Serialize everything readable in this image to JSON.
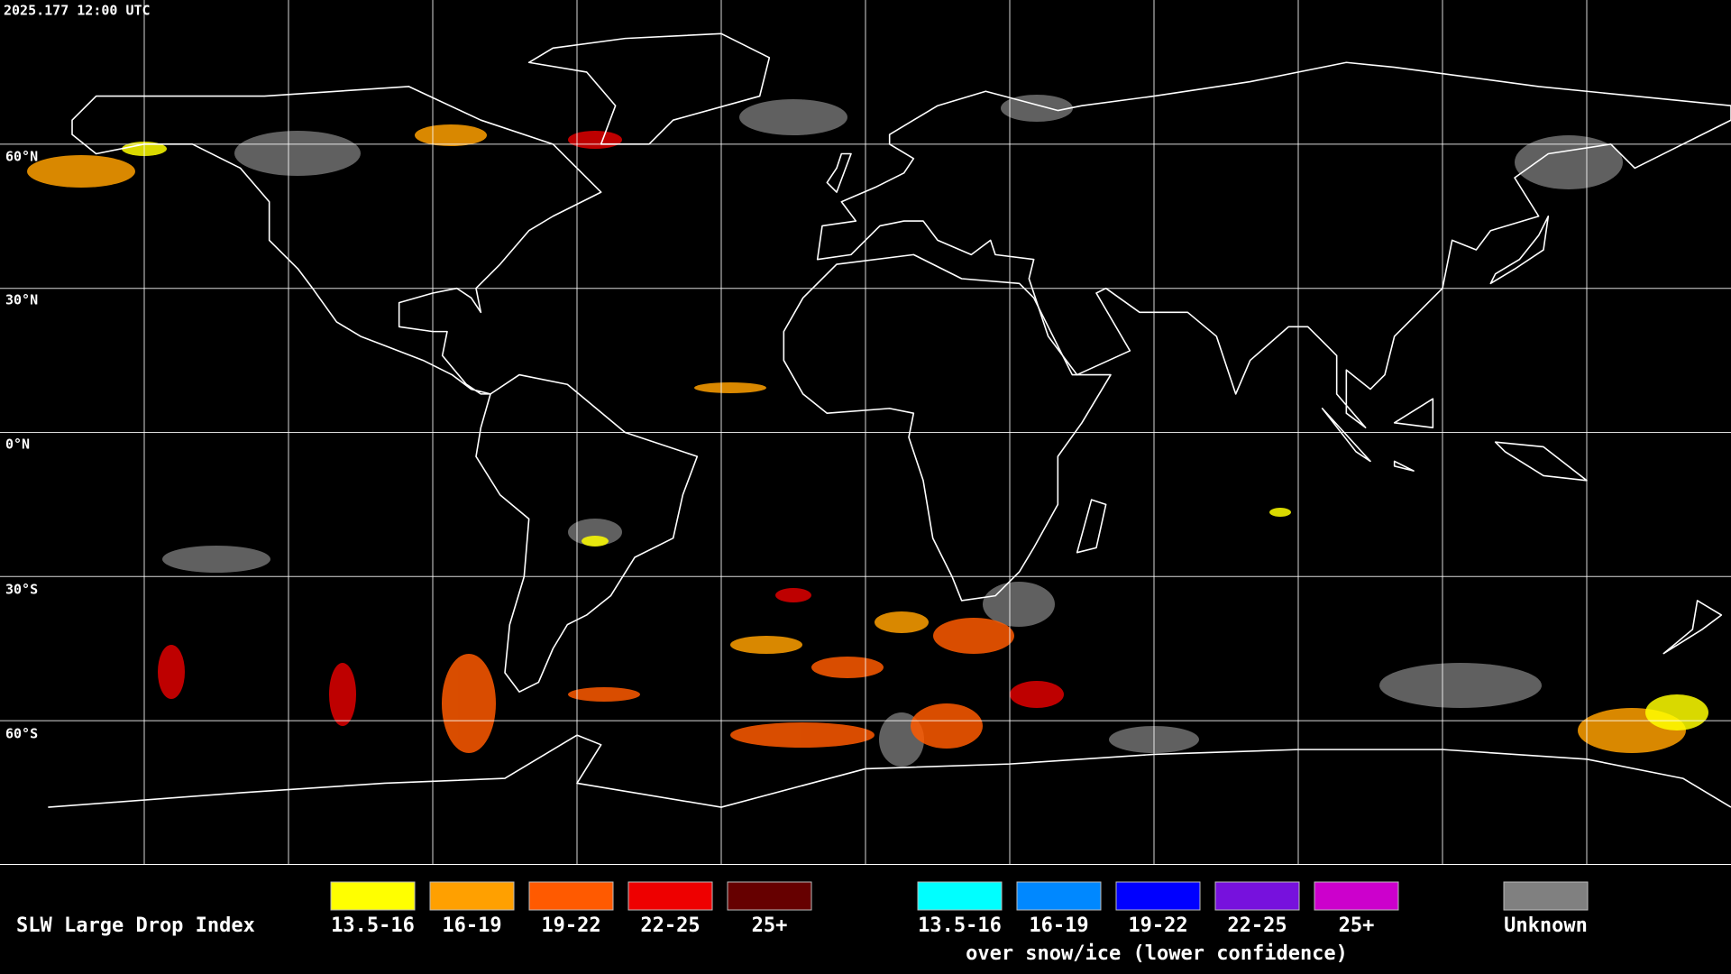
{
  "header": {
    "timestamp": "2025.177 12:00 UTC"
  },
  "map": {
    "latitude_labels": [
      "60°N",
      "30°N",
      "0°N",
      "30°S",
      "60°S"
    ]
  },
  "legend": {
    "title": "SLW Large Drop Index",
    "groups": [
      {
        "items": [
          {
            "label": "13.5-16",
            "color": "#ffff00"
          },
          {
            "label": "16-19",
            "color": "#ffa000"
          },
          {
            "label": "19-22",
            "color": "#ff5a00"
          },
          {
            "label": "22-25",
            "color": "#ee0000"
          },
          {
            "label": "25+",
            "color": "#660000"
          }
        ]
      },
      {
        "items": [
          {
            "label": "13.5-16",
            "color": "#00ffff"
          },
          {
            "label": "16-19",
            "color": "#0088ff"
          },
          {
            "label": "19-22",
            "color": "#0000ff"
          },
          {
            "label": "22-25",
            "color": "#7711dd"
          },
          {
            "label": "25+",
            "color": "#cc00cc"
          }
        ],
        "caption": "over snow/ice (lower confidence)"
      },
      {
        "items": [
          {
            "label": "Unknown",
            "color": "#808080"
          }
        ]
      }
    ]
  }
}
